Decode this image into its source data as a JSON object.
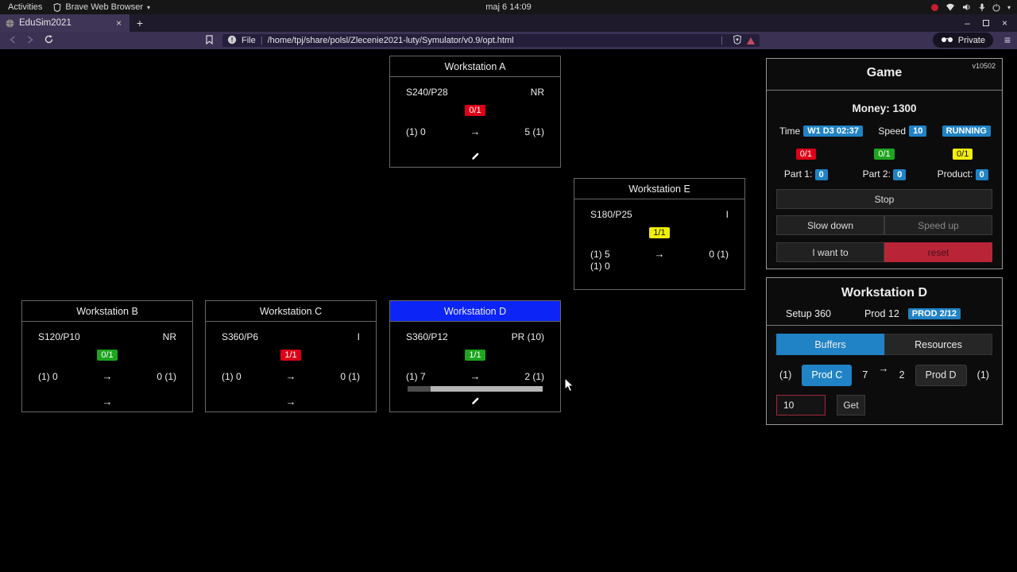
{
  "colors": {
    "accent_blue": "#2083c5",
    "status_red": "#dc0017",
    "status_green": "#1ea41e",
    "status_yellow": "#f0ee0a",
    "workstation_d_header_blue": "#0c24f5",
    "reset_red": "#b92437"
  },
  "topbar": {
    "activities": "Activities",
    "app_name": "Brave Web Browser",
    "clock": "maj 6  14:09"
  },
  "tabbar": {
    "tab_title": "EduSim2021"
  },
  "toolbar": {
    "scheme_label": "File",
    "url_path": "/home/tpj/share/polsl/Zlecenie2021-luty/Symulator/v0.9/opt.html",
    "private_label": "Private"
  },
  "icons": {
    "arrow": "→",
    "menu_caret": "▾",
    "hamburger": "≡",
    "tab_close": "×",
    "new_tab": "+",
    "minimize": "–",
    "window_close": "×"
  },
  "workstations": [
    {
      "title": "Workstation A",
      "code": "S240/P28",
      "status": "NR",
      "badge": "0/1",
      "badge_color": "red",
      "left": "(1) 0",
      "right": "5 (1)",
      "left2": "",
      "footer": "wrench"
    },
    {
      "title": "Workstation B",
      "code": "S120/P10",
      "status": "NR",
      "badge": "0/1",
      "badge_color": "green",
      "left": "(1) 0",
      "right": "0 (1)",
      "left2": "",
      "footer": "arrow"
    },
    {
      "title": "Workstation C",
      "code": "S360/P6",
      "status": "I",
      "badge": "1/1",
      "badge_color": "red",
      "left": "(1) 0",
      "right": "0 (1)",
      "left2": "",
      "footer": "arrow"
    },
    {
      "title": "Workstation D",
      "code": "S360/P12",
      "status": "PR (10)",
      "badge": "1/1",
      "badge_color": "green",
      "left": "(1) 7",
      "right": "2 (1)",
      "left2": "",
      "footer": "wrench",
      "progress_pct": 17
    },
    {
      "title": "Workstation E",
      "code": "S180/P25",
      "status": "I",
      "badge": "1/1",
      "badge_color": "yellow",
      "left": "(1) 5",
      "right": "0 (1)",
      "left2": "(1) 0",
      "footer": ""
    }
  ],
  "game": {
    "title": "Game",
    "version": "v10502",
    "money": "Money: 1300",
    "time_label": "Time",
    "time_value": "W1 D3 02:37",
    "speed_label": "Speed",
    "speed_value": "10",
    "state": "RUNNING",
    "machine_badges": [
      "0/1",
      "0/1",
      "0/1"
    ],
    "part1_label": "Part 1:",
    "part1_value": "0",
    "part2_label": "Part 2:",
    "part2_value": "0",
    "product_label": "Product:",
    "product_value": "0",
    "stop_label": "Stop",
    "slow_label": "Slow down",
    "speedup_label": "Speed up",
    "iwant_label": "I want to",
    "reset_label": "reset"
  },
  "station_panel": {
    "title": "Workstation D",
    "setup": "Setup 360",
    "prod": "Prod 12",
    "prod_badge": "PROD 2/12",
    "tab_buffers": "Buffers",
    "tab_resources": "Resources",
    "left_cap": "(1)",
    "src_button": "Prod C",
    "src_count": "7",
    "dst_count": "2",
    "dst_button": "Prod D",
    "right_cap": "(1)",
    "input_value": "10",
    "get_label": "Get"
  }
}
